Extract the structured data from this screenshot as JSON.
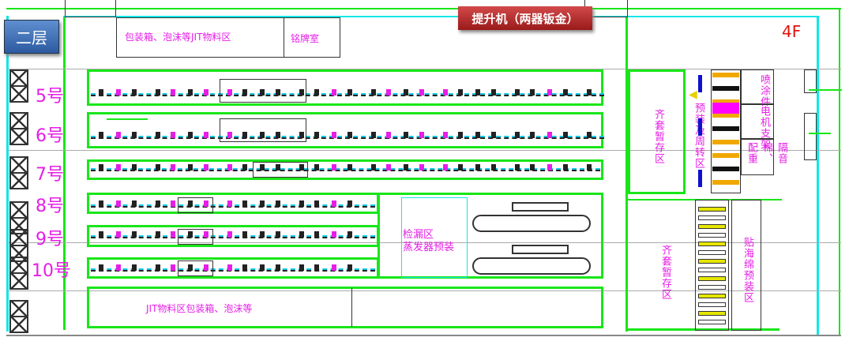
{
  "floor_button": "二层",
  "lift_button": "提升机（两器钣金）",
  "floor_code": "4F",
  "top_zone": {
    "jit": "包装箱、泡沫等JIT物料区",
    "nameplate": "铭牌室"
  },
  "lines": [
    "5号",
    "6号",
    "7号",
    "8号",
    "9号",
    "10号"
  ],
  "middle_zone": {
    "line1": "检漏区",
    "line2": "蒸发器预装"
  },
  "bottom_zone": "JIT物料区包装箱、泡沫等",
  "right_zone": {
    "kit_storage_top": "齐套暂存区",
    "preassembly_turnover": "预装及周转区",
    "spray_parts": "喷涂件",
    "motor_bracket": "电机支架",
    "insulation": "隔音棉、配重",
    "kit_storage_bottom": "齐套暂存区",
    "sponge_preassembly": "贴海绵预装区"
  },
  "colors": {
    "zone_border": "#19e619",
    "label": "#e61ee6",
    "wall": "#12e6e6",
    "accent_red": "#b02020"
  }
}
